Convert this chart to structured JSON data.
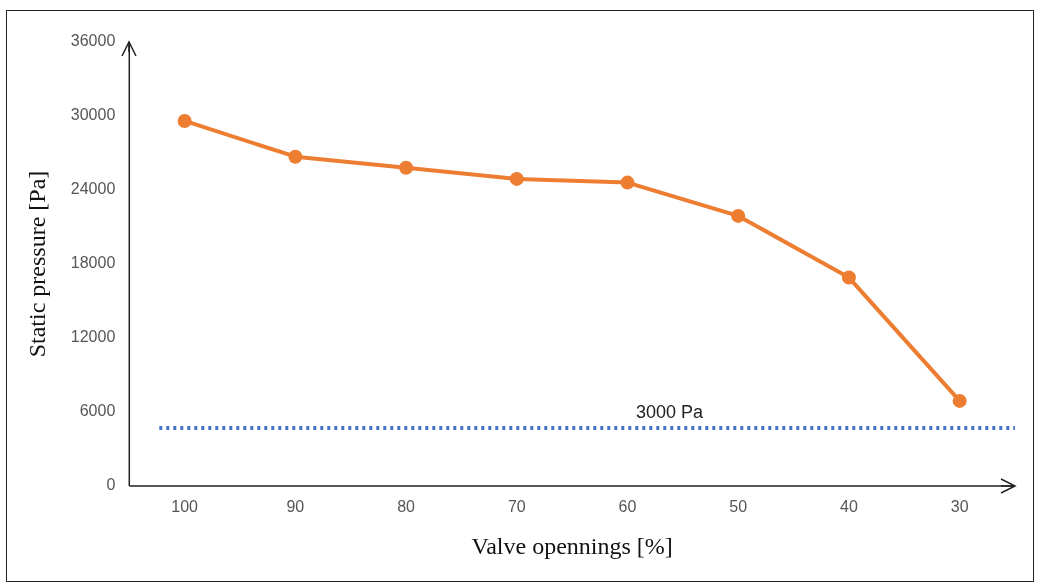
{
  "chart_data": {
    "type": "line",
    "xlabel": "Valve opennings [%]",
    "ylabel": "Static pressure [Pa]",
    "categories": [
      "100",
      "90",
      "80",
      "70",
      "60",
      "50",
      "40",
      "30"
    ],
    "series": [
      {
        "color": "#ed7d31",
        "values": [
          29600,
          26700,
          25800,
          24900,
          24600,
          21900,
          16900,
          6900
        ]
      }
    ],
    "ylim": [
      0,
      36000
    ],
    "yticks": [
      0,
      6000,
      12000,
      18000,
      24000,
      30000,
      36000
    ],
    "ref_lines": [
      {
        "axis": "y",
        "value": 4700,
        "label": "3000 Pa",
        "color": "#4472c4",
        "line_style": "dotted"
      }
    ],
    "marker": "circle",
    "line_style": "solid",
    "grid": false,
    "legend": false
  }
}
